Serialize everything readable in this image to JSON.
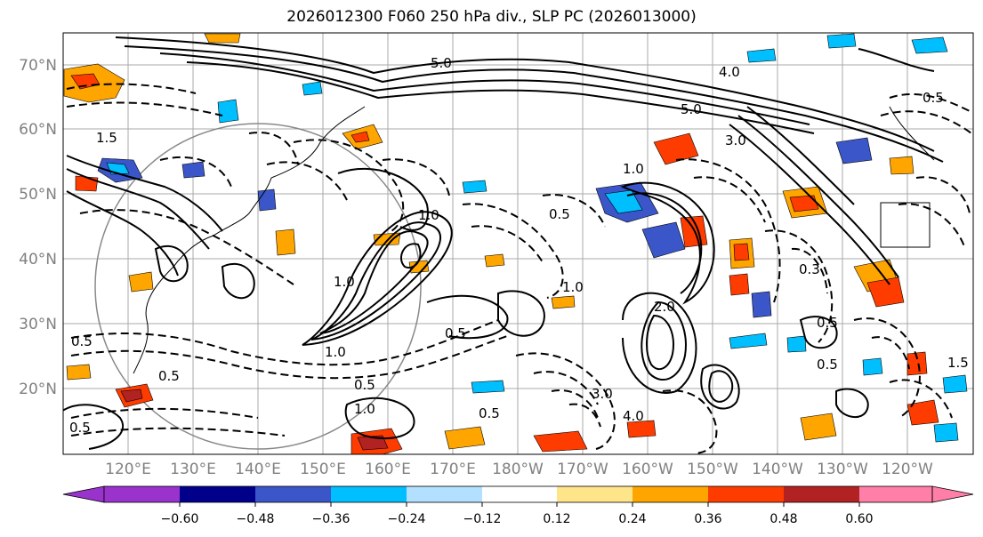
{
  "title": "2026012300 F060 250 hPa div., SLP PC (2026013000)",
  "lat_labels": [
    "70°N",
    "60°N",
    "50°N",
    "40°N",
    "30°N",
    "20°N"
  ],
  "lon_labels": [
    "120°E",
    "130°E",
    "140°E",
    "150°E",
    "160°E",
    "170°E",
    "180°W",
    "170°W",
    "160°W",
    "150°W",
    "140°W",
    "130°W",
    "120°W"
  ],
  "colorbar": {
    "colors": [
      "#9933cc",
      "#00008b",
      "#3a56c8",
      "#00bfff",
      "#b3e0ff",
      "#ffffff",
      "#ffe58a",
      "#ffa500",
      "#ff3c00",
      "#b22222",
      "#ff7fa8"
    ],
    "tick_labels": [
      "−0.60",
      "−0.48",
      "−0.36",
      "−0.24",
      "−0.12",
      "0.12",
      "0.24",
      "0.36",
      "0.48",
      "0.60"
    ]
  },
  "contour_labels": [
    "5.0",
    "5.0",
    "4.0",
    "3.0",
    "1.0",
    "1.0",
    "0.5",
    "0.5",
    "0.5",
    "0.5",
    "1.0",
    "1.0",
    "0.5",
    "1.0",
    "0.5",
    "3.0",
    "4.0",
    "2.0",
    "1.5",
    "0.5",
    "1.5",
    "0.5",
    "0.5",
    "0.3",
    "1.0",
    "0.5"
  ]
}
